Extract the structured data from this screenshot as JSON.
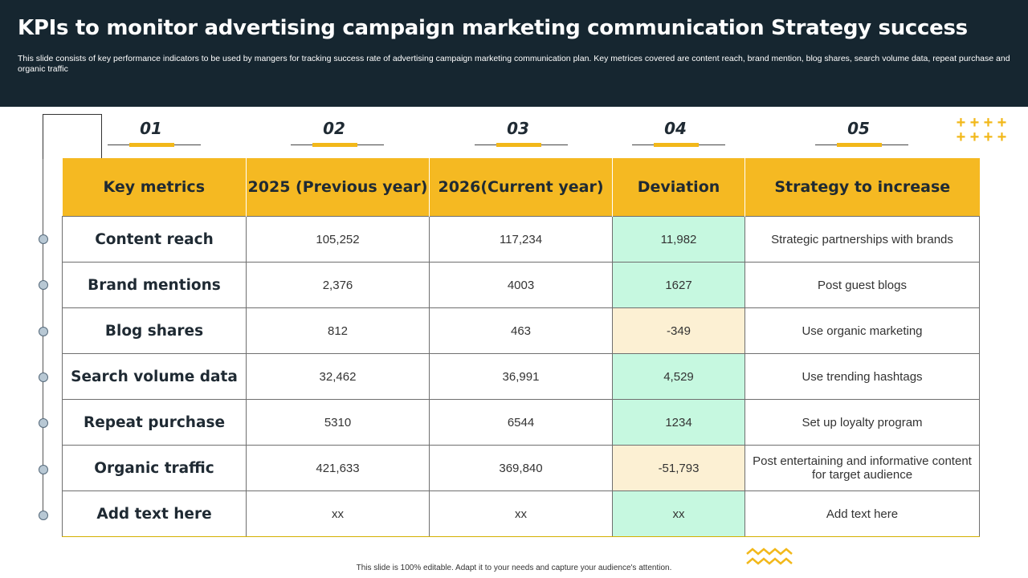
{
  "header": {
    "title": "KPIs to monitor advertising campaign marketing communication Strategy success",
    "subtitle": "This slide consists of key performance indicators to be used by mangers for tracking success rate of advertising campaign marketing communication plan. Key metrices covered are content reach, brand mention, blog shares, search volume data, repeat purchase and organic traffic"
  },
  "steps": [
    "01",
    "02",
    "03",
    "04",
    "05"
  ],
  "table": {
    "headers": [
      "Key metrics",
      "2025 (Previous year)",
      "2026(Current year)",
      "Deviation",
      "Strategy to increase"
    ],
    "rows": [
      {
        "metric": "Content reach",
        "prev": "105,252",
        "curr": "117,234",
        "dev": "11,982",
        "strategy": "Strategic partnerships with brands"
      },
      {
        "metric": "Brand mentions",
        "prev": "2,376",
        "curr": "4003",
        "dev": "1627",
        "strategy": "Post guest blogs"
      },
      {
        "metric": "Blog shares",
        "prev": "812",
        "curr": "463",
        "dev": "-349",
        "strategy": "Use organic marketing"
      },
      {
        "metric": "Search volume data",
        "prev": "32,462",
        "curr": "36,991",
        "dev": "4,529",
        "strategy": "Use trending hashtags"
      },
      {
        "metric": "Repeat purchase",
        "prev": "5310",
        "curr": "6544",
        "dev": "1234",
        "strategy": "Set up loyalty program"
      },
      {
        "metric": "Organic traffic",
        "prev": "421,633",
        "curr": "369,840",
        "dev": "-51,793",
        "strategy": "Post entertaining and informative content for target audience"
      },
      {
        "metric": "Add text here",
        "prev": "xx",
        "curr": "xx",
        "dev": "xx",
        "strategy": "Add text here"
      }
    ]
  },
  "footer": "This slide is 100% editable. Adapt it to your needs and capture your audience's attention.",
  "colors": {
    "header_bg": "#162630",
    "accent": "#f5b922",
    "positive": "#c6f8e0",
    "negative": "#fcf0d3"
  }
}
